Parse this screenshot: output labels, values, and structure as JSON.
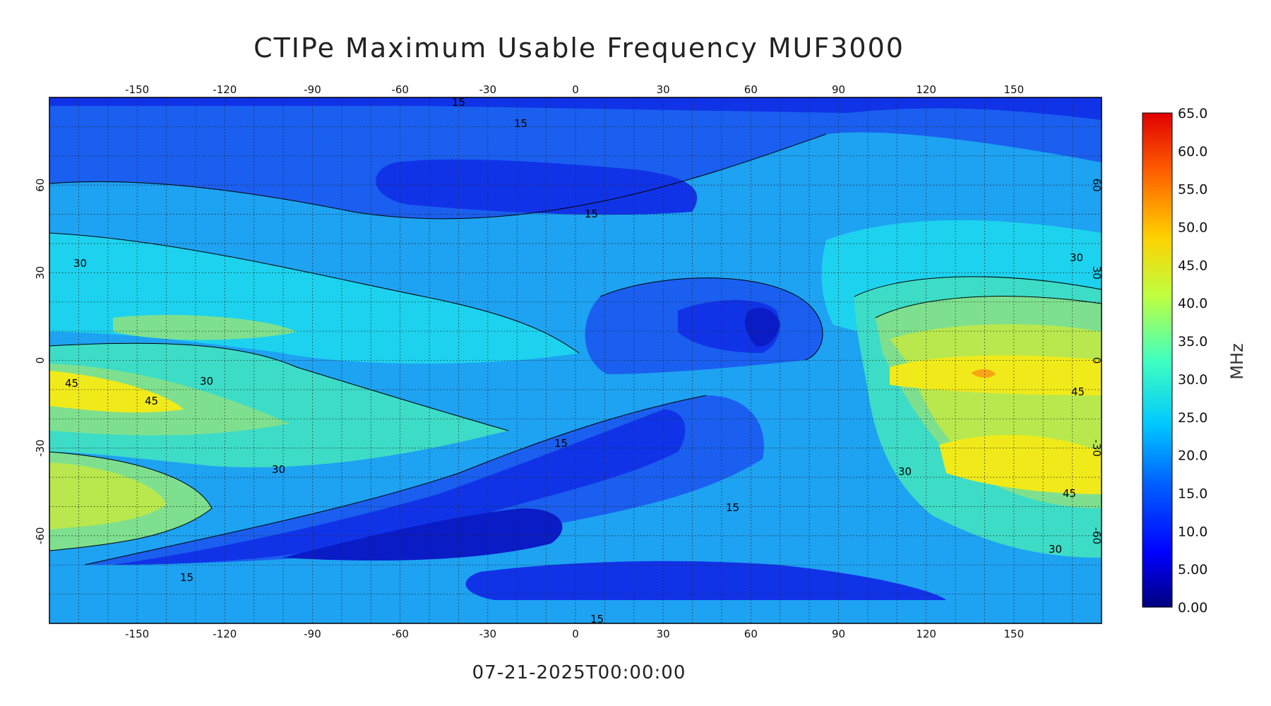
{
  "title": "CTIPe Maximum Usable Frequency MUF3000",
  "timestamp": "07-21-2025T00:00:00",
  "map": {
    "projection": "cylindrical equidistant",
    "lon_range": [
      -180,
      180
    ],
    "lat_range": [
      -90,
      90
    ],
    "lon_ticks": [
      "-150",
      "-120",
      "-90",
      "-60",
      "-30",
      "0",
      "30",
      "60",
      "90",
      "120",
      "150"
    ],
    "lat_ticks": [
      "60",
      "30",
      "0",
      "-30",
      "-60"
    ],
    "grid": "dotted, every 10 degrees",
    "contour_levels_mhz": [
      0,
      5,
      10,
      15,
      20,
      25,
      30,
      35,
      40,
      45,
      50,
      55,
      60,
      65
    ],
    "contour_labels": [
      "15",
      "15",
      "15",
      "15",
      "15",
      "15",
      "15",
      "30",
      "30",
      "30",
      "30",
      "30",
      "30",
      "45",
      "45",
      "45",
      "45"
    ],
    "features": [
      {
        "label": "high MUF band, equatorial Pacific",
        "peak_mhz": 45
      },
      {
        "label": "high MUF, Australia",
        "peak_mhz": 45
      },
      {
        "label": "high MUF, New Guinea",
        "peak_mhz": 50
      },
      {
        "label": "low MUF, South Atlantic",
        "peak_mhz": 10
      },
      {
        "label": "low MUF, North Atlantic",
        "peak_mhz": 10
      },
      {
        "label": "low MUF, Arabian Sea",
        "peak_mhz": 5
      }
    ]
  },
  "colorbar": {
    "unit": "MHz",
    "labels": [
      "65.0",
      "60.0",
      "55.0",
      "50.0",
      "45.0",
      "40.0",
      "35.0",
      "30.0",
      "25.0",
      "20.0",
      "15.0",
      "10.0",
      "5.00",
      "0.00"
    ],
    "min": 0,
    "max": 65,
    "colormap": "jet"
  },
  "colors": {
    "c5": "#0a1cc6",
    "c10": "#1133e8",
    "c15": "#1a5fef",
    "c20": "#1ea2f2",
    "c25": "#1dd2ee",
    "c30": "#3ddcc6",
    "c35": "#7ee08e",
    "c40": "#b8e84e",
    "c45": "#f0ea1a",
    "c50": "#f7a516"
  }
}
